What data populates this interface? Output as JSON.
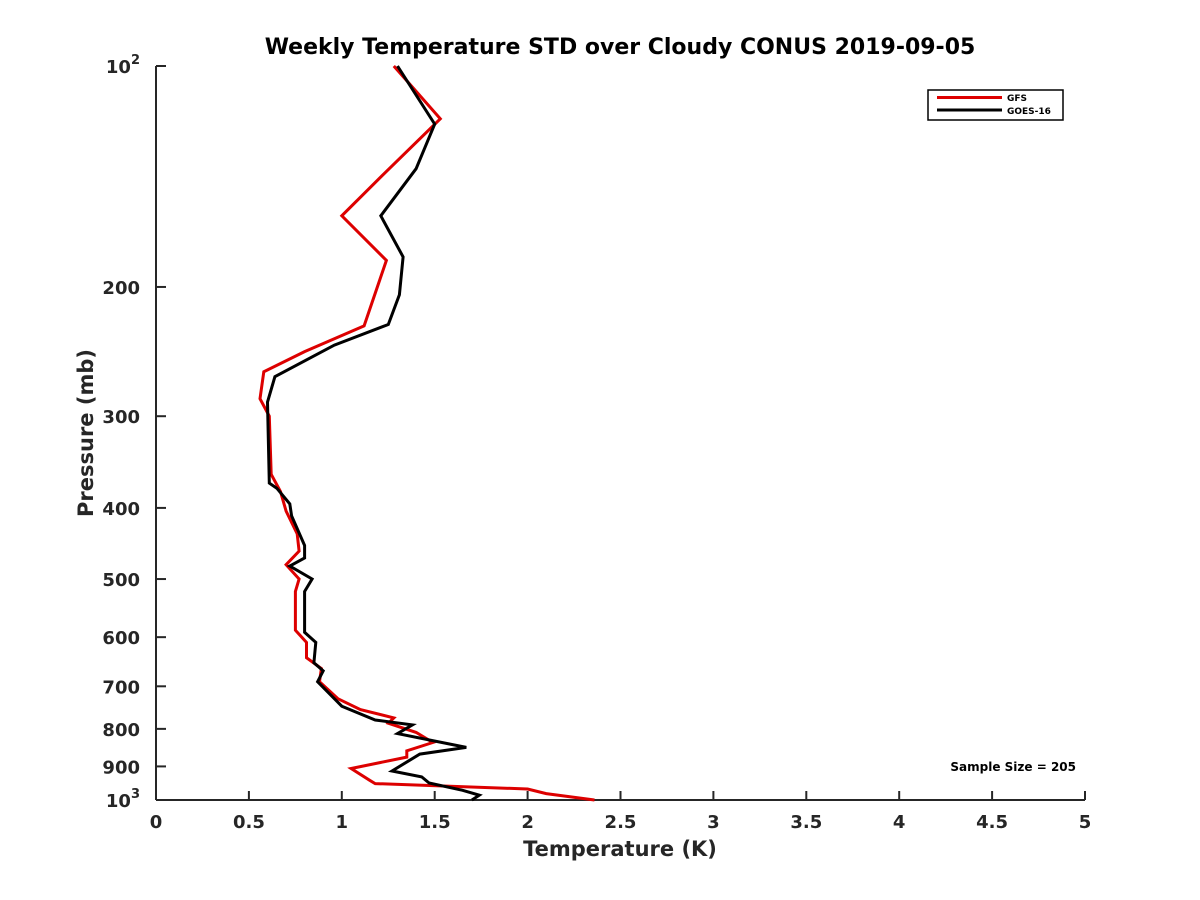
{
  "chart_data": {
    "type": "line",
    "title": "Weekly Temperature STD over Cloudy CONUS 2019-09-05",
    "xlabel": "Temperature (K)",
    "ylabel": "Pressure (mb)",
    "xlim": [
      0,
      5
    ],
    "ylim": [
      100,
      1000
    ],
    "y_scale": "log",
    "y_reversed": true,
    "x_ticks": [
      0,
      0.5,
      1,
      1.5,
      2,
      2.5,
      3,
      3.5,
      4,
      4.5,
      5
    ],
    "x_tick_labels": [
      "0",
      "0.5",
      "1",
      "1.5",
      "2",
      "2.5",
      "3",
      "3.5",
      "4",
      "4.5",
      "5"
    ],
    "y_ticks": [
      {
        "value": 100,
        "base": "10",
        "exp": "2"
      },
      {
        "value": 200,
        "label": "200"
      },
      {
        "value": 300,
        "label": "300"
      },
      {
        "value": 400,
        "label": "400"
      },
      {
        "value": 500,
        "label": "500"
      },
      {
        "value": 600,
        "label": "600"
      },
      {
        "value": 700,
        "label": "700"
      },
      {
        "value": 800,
        "label": "800"
      },
      {
        "value": 900,
        "label": "900"
      },
      {
        "value": 1000,
        "base": "10",
        "exp": "3"
      }
    ],
    "grid": false,
    "legend_position": "top-right",
    "annotation": "Sample Size = 205",
    "series": [
      {
        "name": "GFS",
        "color": "#dd0000",
        "points": [
          {
            "x": 1.28,
            "p": 100
          },
          {
            "x": 1.53,
            "p": 118
          },
          {
            "x": 1.23,
            "p": 140
          },
          {
            "x": 1.0,
            "p": 160
          },
          {
            "x": 1.24,
            "p": 184
          },
          {
            "x": 1.12,
            "p": 226
          },
          {
            "x": 0.8,
            "p": 245
          },
          {
            "x": 0.58,
            "p": 261
          },
          {
            "x": 0.56,
            "p": 284
          },
          {
            "x": 0.61,
            "p": 300
          },
          {
            "x": 0.62,
            "p": 360
          },
          {
            "x": 0.67,
            "p": 380
          },
          {
            "x": 0.7,
            "p": 404
          },
          {
            "x": 0.76,
            "p": 434
          },
          {
            "x": 0.77,
            "p": 458
          },
          {
            "x": 0.7,
            "p": 478
          },
          {
            "x": 0.77,
            "p": 500
          },
          {
            "x": 0.75,
            "p": 520
          },
          {
            "x": 0.75,
            "p": 587
          },
          {
            "x": 0.81,
            "p": 610
          },
          {
            "x": 0.81,
            "p": 640
          },
          {
            "x": 0.89,
            "p": 662
          },
          {
            "x": 0.88,
            "p": 690
          },
          {
            "x": 0.98,
            "p": 728
          },
          {
            "x": 1.1,
            "p": 753
          },
          {
            "x": 1.28,
            "p": 773
          },
          {
            "x": 1.25,
            "p": 786
          },
          {
            "x": 1.4,
            "p": 809
          },
          {
            "x": 1.49,
            "p": 835
          },
          {
            "x": 1.35,
            "p": 857
          },
          {
            "x": 1.35,
            "p": 874
          },
          {
            "x": 1.05,
            "p": 906
          },
          {
            "x": 1.15,
            "p": 940
          },
          {
            "x": 1.18,
            "p": 950
          },
          {
            "x": 2.0,
            "p": 966
          },
          {
            "x": 2.1,
            "p": 980
          },
          {
            "x": 2.36,
            "p": 1000
          }
        ]
      },
      {
        "name": "GOES-16",
        "color": "#000000",
        "points": [
          {
            "x": 1.3,
            "p": 100
          },
          {
            "x": 1.5,
            "p": 120
          },
          {
            "x": 1.4,
            "p": 138
          },
          {
            "x": 1.21,
            "p": 160
          },
          {
            "x": 1.33,
            "p": 182
          },
          {
            "x": 1.31,
            "p": 205
          },
          {
            "x": 1.25,
            "p": 225
          },
          {
            "x": 0.96,
            "p": 240
          },
          {
            "x": 0.64,
            "p": 265
          },
          {
            "x": 0.6,
            "p": 287
          },
          {
            "x": 0.61,
            "p": 370
          },
          {
            "x": 0.65,
            "p": 376
          },
          {
            "x": 0.72,
            "p": 395
          },
          {
            "x": 0.73,
            "p": 410
          },
          {
            "x": 0.8,
            "p": 450
          },
          {
            "x": 0.8,
            "p": 468
          },
          {
            "x": 0.72,
            "p": 480
          },
          {
            "x": 0.84,
            "p": 500
          },
          {
            "x": 0.8,
            "p": 520
          },
          {
            "x": 0.8,
            "p": 591
          },
          {
            "x": 0.86,
            "p": 610
          },
          {
            "x": 0.85,
            "p": 650
          },
          {
            "x": 0.9,
            "p": 667
          },
          {
            "x": 0.87,
            "p": 690
          },
          {
            "x": 1.0,
            "p": 745
          },
          {
            "x": 1.18,
            "p": 778
          },
          {
            "x": 1.38,
            "p": 790
          },
          {
            "x": 1.3,
            "p": 812
          },
          {
            "x": 1.67,
            "p": 848
          },
          {
            "x": 1.42,
            "p": 866
          },
          {
            "x": 1.27,
            "p": 913
          },
          {
            "x": 1.43,
            "p": 930
          },
          {
            "x": 1.47,
            "p": 948
          },
          {
            "x": 1.65,
            "p": 970
          },
          {
            "x": 1.74,
            "p": 985
          },
          {
            "x": 1.7,
            "p": 1000
          }
        ]
      }
    ]
  }
}
